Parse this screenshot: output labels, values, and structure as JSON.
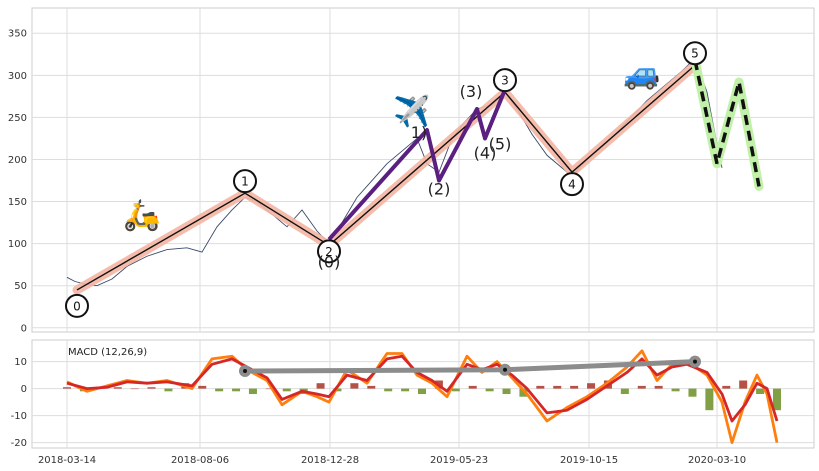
{
  "chart_data": [
    {
      "type": "line",
      "panel": "price",
      "title": "",
      "xlabel": "",
      "ylabel": "",
      "ylim": [
        -5,
        380
      ],
      "yticks": [
        "0",
        "50",
        "100",
        "150",
        "200",
        "250",
        "300",
        "350"
      ],
      "grid": true,
      "price_points": [
        {
          "x": 0,
          "y": 60
        },
        {
          "x": 8,
          "y": 55
        },
        {
          "x": 18,
          "y": 52
        },
        {
          "x": 30,
          "y": 50
        },
        {
          "x": 45,
          "y": 58
        },
        {
          "x": 60,
          "y": 73
        },
        {
          "x": 80,
          "y": 85
        },
        {
          "x": 100,
          "y": 93
        },
        {
          "x": 120,
          "y": 95
        },
        {
          "x": 135,
          "y": 90
        },
        {
          "x": 150,
          "y": 120
        },
        {
          "x": 165,
          "y": 140
        },
        {
          "x": 178,
          "y": 155
        },
        {
          "x": 190,
          "y": 150
        },
        {
          "x": 205,
          "y": 135
        },
        {
          "x": 220,
          "y": 120
        },
        {
          "x": 235,
          "y": 140
        },
        {
          "x": 250,
          "y": 115
        },
        {
          "x": 262,
          "y": 100
        },
        {
          "x": 275,
          "y": 125
        },
        {
          "x": 290,
          "y": 155
        },
        {
          "x": 305,
          "y": 175
        },
        {
          "x": 320,
          "y": 195
        },
        {
          "x": 335,
          "y": 210
        },
        {
          "x": 350,
          "y": 225
        },
        {
          "x": 360,
          "y": 195
        },
        {
          "x": 372,
          "y": 185
        },
        {
          "x": 385,
          "y": 225
        },
        {
          "x": 398,
          "y": 245
        },
        {
          "x": 410,
          "y": 260
        },
        {
          "x": 425,
          "y": 265
        },
        {
          "x": 438,
          "y": 280
        },
        {
          "x": 450,
          "y": 260
        },
        {
          "x": 465,
          "y": 230
        },
        {
          "x": 480,
          "y": 205
        },
        {
          "x": 495,
          "y": 190
        },
        {
          "x": 505,
          "y": 180
        },
        {
          "x": 520,
          "y": 200
        },
        {
          "x": 540,
          "y": 220
        },
        {
          "x": 560,
          "y": 245
        },
        {
          "x": 580,
          "y": 270
        },
        {
          "x": 600,
          "y": 290
        },
        {
          "x": 615,
          "y": 305
        },
        {
          "x": 628,
          "y": 320
        },
        {
          "x": 640,
          "y": 280
        },
        {
          "x": 648,
          "y": 230
        },
        {
          "x": 655,
          "y": 190
        }
      ],
      "waves": {
        "main_impulse": {
          "color": "#f4b5a3",
          "points": [
            {
              "x": 10,
              "y": 45
            },
            {
              "x": 178,
              "y": 160
            },
            {
              "x": 262,
              "y": 98
            },
            {
              "x": 438,
              "y": 280
            },
            {
              "x": 505,
              "y": 185
            },
            {
              "x": 628,
              "y": 312
            }
          ],
          "labels": [
            "0",
            "1",
            "2",
            "3",
            "4",
            "5"
          ]
        },
        "sub_impulse": {
          "color": "#5a1f80",
          "points": [
            {
              "x": 262,
              "y": 105
            },
            {
              "x": 360,
              "y": 235
            },
            {
              "x": 372,
              "y": 175
            },
            {
              "x": 410,
              "y": 260
            },
            {
              "x": 418,
              "y": 225
            },
            {
              "x": 438,
              "y": 283
            }
          ],
          "labels": [
            "(0)",
            "1)",
            "(2)",
            "(3)",
            "(4)",
            "(5)"
          ]
        },
        "correction": {
          "color": "#c1f1a8",
          "points": [
            {
              "x": 628,
              "y": 318
            },
            {
              "x": 650,
              "y": 195
            },
            {
              "x": 672,
              "y": 292
            },
            {
              "x": 692,
              "y": 168
            }
          ]
        }
      },
      "icons": [
        {
          "name": "scooter-icon",
          "glyph": "🛵",
          "x": 75,
          "y": 122
        },
        {
          "name": "airplane-icon",
          "glyph": "✈️",
          "x": 345,
          "y": 245
        },
        {
          "name": "car-icon",
          "glyph": "🚙",
          "x": 575,
          "y": 290
        }
      ]
    },
    {
      "type": "bar",
      "panel": "macd",
      "title": "MACD (12,26,9)",
      "xlabel": "",
      "ylabel": "",
      "ylim": [
        -22,
        18
      ],
      "yticks": [
        "-20",
        "-10",
        "0",
        "10"
      ],
      "grid": true,
      "x_tick_labels": [
        "2018-03-14",
        "2018-08-06",
        "2018-12-28",
        "2019-05-23",
        "2019-10-15",
        "2020-03-10"
      ],
      "macd_line": [
        {
          "x": 0,
          "y": 2.5
        },
        {
          "x": 20,
          "y": -1
        },
        {
          "x": 40,
          "y": 1
        },
        {
          "x": 60,
          "y": 3
        },
        {
          "x": 80,
          "y": 2
        },
        {
          "x": 100,
          "y": 3
        },
        {
          "x": 125,
          "y": 0
        },
        {
          "x": 145,
          "y": 11
        },
        {
          "x": 165,
          "y": 12
        },
        {
          "x": 180,
          "y": 7
        },
        {
          "x": 200,
          "y": 3
        },
        {
          "x": 215,
          "y": -6
        },
        {
          "x": 235,
          "y": -1
        },
        {
          "x": 250,
          "y": -3
        },
        {
          "x": 262,
          "y": -5
        },
        {
          "x": 280,
          "y": 7
        },
        {
          "x": 300,
          "y": 2
        },
        {
          "x": 320,
          "y": 13
        },
        {
          "x": 335,
          "y": 13
        },
        {
          "x": 350,
          "y": 5
        },
        {
          "x": 365,
          "y": 2
        },
        {
          "x": 380,
          "y": -3
        },
        {
          "x": 400,
          "y": 12
        },
        {
          "x": 415,
          "y": 6
        },
        {
          "x": 430,
          "y": 10
        },
        {
          "x": 445,
          "y": 4
        },
        {
          "x": 460,
          "y": -2
        },
        {
          "x": 480,
          "y": -12
        },
        {
          "x": 500,
          "y": -7
        },
        {
          "x": 520,
          "y": -3
        },
        {
          "x": 540,
          "y": 2
        },
        {
          "x": 560,
          "y": 8
        },
        {
          "x": 575,
          "y": 14
        },
        {
          "x": 590,
          "y": 3
        },
        {
          "x": 605,
          "y": 9
        },
        {
          "x": 620,
          "y": 10
        },
        {
          "x": 640,
          "y": 5
        },
        {
          "x": 655,
          "y": -5
        },
        {
          "x": 665,
          "y": -20
        },
        {
          "x": 678,
          "y": -5
        },
        {
          "x": 690,
          "y": 5
        },
        {
          "x": 700,
          "y": -2
        },
        {
          "x": 710,
          "y": -20
        }
      ],
      "signal_line": [
        {
          "x": 0,
          "y": 2
        },
        {
          "x": 20,
          "y": 0
        },
        {
          "x": 40,
          "y": 0.5
        },
        {
          "x": 60,
          "y": 2.5
        },
        {
          "x": 80,
          "y": 2
        },
        {
          "x": 100,
          "y": 2.5
        },
        {
          "x": 125,
          "y": 1
        },
        {
          "x": 145,
          "y": 9
        },
        {
          "x": 165,
          "y": 11
        },
        {
          "x": 180,
          "y": 8
        },
        {
          "x": 200,
          "y": 4
        },
        {
          "x": 215,
          "y": -4
        },
        {
          "x": 235,
          "y": -1
        },
        {
          "x": 250,
          "y": -2
        },
        {
          "x": 262,
          "y": -3
        },
        {
          "x": 280,
          "y": 5
        },
        {
          "x": 300,
          "y": 3
        },
        {
          "x": 320,
          "y": 11
        },
        {
          "x": 335,
          "y": 12
        },
        {
          "x": 350,
          "y": 6
        },
        {
          "x": 365,
          "y": 3
        },
        {
          "x": 380,
          "y": -1
        },
        {
          "x": 400,
          "y": 9
        },
        {
          "x": 415,
          "y": 7
        },
        {
          "x": 430,
          "y": 9
        },
        {
          "x": 445,
          "y": 5
        },
        {
          "x": 460,
          "y": 0
        },
        {
          "x": 480,
          "y": -9
        },
        {
          "x": 500,
          "y": -8
        },
        {
          "x": 520,
          "y": -4
        },
        {
          "x": 540,
          "y": 1
        },
        {
          "x": 560,
          "y": 6
        },
        {
          "x": 575,
          "y": 11
        },
        {
          "x": 590,
          "y": 5
        },
        {
          "x": 605,
          "y": 8
        },
        {
          "x": 620,
          "y": 9
        },
        {
          "x": 640,
          "y": 6
        },
        {
          "x": 655,
          "y": -2
        },
        {
          "x": 665,
          "y": -12
        },
        {
          "x": 678,
          "y": -6
        },
        {
          "x": 690,
          "y": 2
        },
        {
          "x": 700,
          "y": 0
        },
        {
          "x": 710,
          "y": -12
        }
      ],
      "histogram": [
        0.5,
        -1,
        0.5,
        0.5,
        0,
        0.5,
        -1,
        2,
        1,
        -1,
        -1,
        -2,
        0,
        -1,
        -2,
        2,
        -1,
        2,
        1,
        -1,
        -1,
        -2,
        3,
        -1,
        1,
        -1,
        -2,
        -3,
        1,
        1,
        1,
        2,
        3,
        -2,
        1,
        1,
        -1,
        -3,
        -8,
        1,
        3,
        -2,
        -8
      ],
      "trendline": {
        "color": "#8c8c8c",
        "points": [
          {
            "x": 178,
            "y": 6.5
          },
          {
            "x": 438,
            "y": 7
          },
          {
            "x": 628,
            "y": 10
          }
        ]
      },
      "colors": {
        "macd": "#ff7f0e",
        "signal": "#d62728",
        "hist_pos": "#a93226",
        "hist_neg": "#6b8e23"
      }
    }
  ]
}
